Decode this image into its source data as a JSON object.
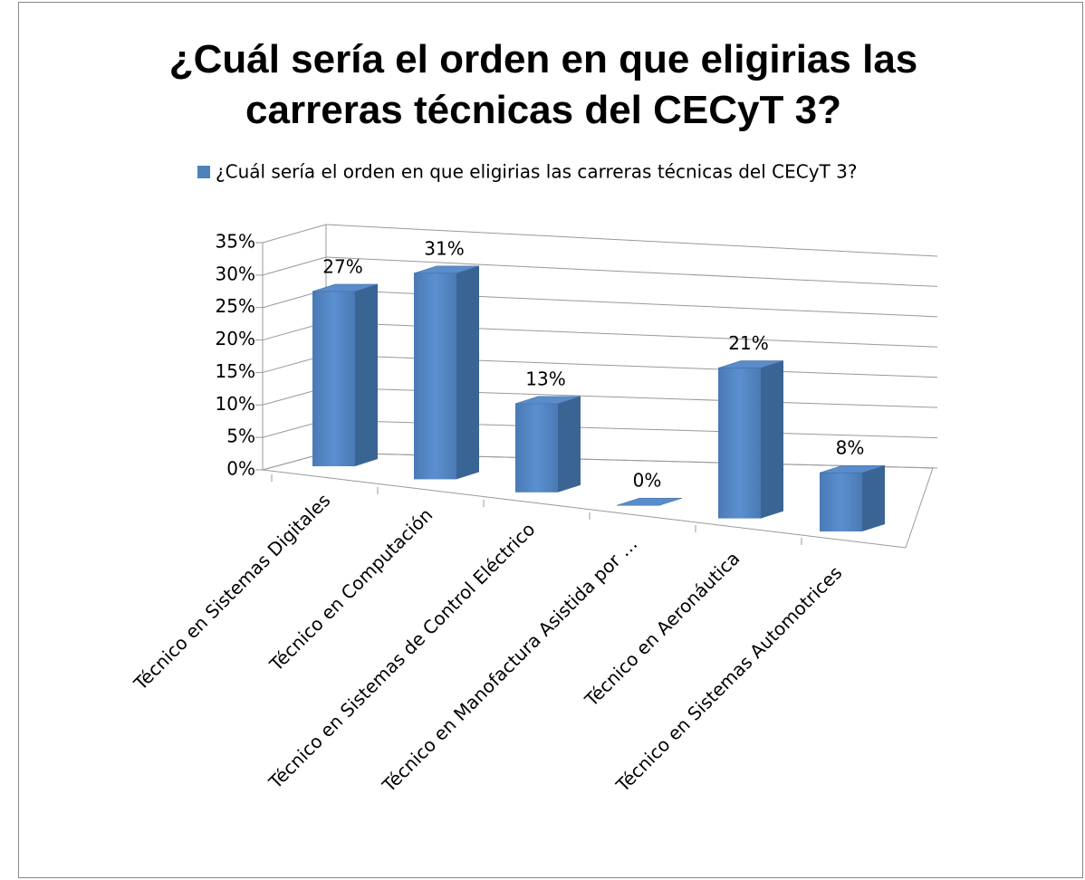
{
  "chart_data": {
    "type": "bar3d",
    "title": "¿Cuál sería el orden en que eligirias las carreras técnicas del CECyT 3?",
    "categories": [
      "Técnico en Sistemas Digitales",
      "Técnico en Computación",
      "Técnico en Sistemas de Control Eléctrico",
      "Técnico en Manofactura Asistida por …",
      "Técnico en Aeronáutica",
      "Técnico en Sistemas Automotrices"
    ],
    "series": [
      {
        "name": "¿Cuál sería el orden en que eligirias las carreras técnicas del CECyT 3?",
        "color": "#4f81bd",
        "values": [
          27,
          31,
          13,
          0,
          21,
          8
        ],
        "value_labels": [
          "27%",
          "31%",
          "13%",
          "0%",
          "21%",
          "8%"
        ]
      }
    ],
    "ylim": [
      0,
      35
    ],
    "yticks": [
      {
        "value": 0,
        "label": "0%"
      },
      {
        "value": 5,
        "label": "5%"
      },
      {
        "value": 10,
        "label": "10%"
      },
      {
        "value": 15,
        "label": "15%"
      },
      {
        "value": 20,
        "label": "20%"
      },
      {
        "value": 25,
        "label": "25%"
      },
      {
        "value": 30,
        "label": "30%"
      },
      {
        "value": 35,
        "label": "35%"
      }
    ],
    "grid": true,
    "legend": "top"
  }
}
